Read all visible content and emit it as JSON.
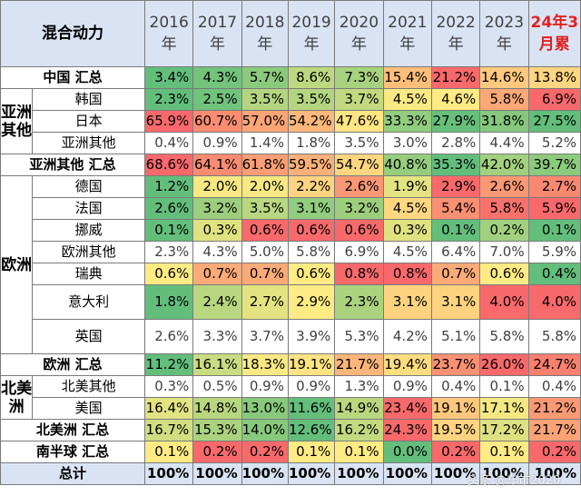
{
  "header": {
    "title": "混合动力",
    "years": [
      {
        "line1": "2016",
        "line2": "年"
      },
      {
        "line1": "2017",
        "line2": "年"
      },
      {
        "line1": "2018",
        "line2": "年"
      },
      {
        "line1": "2019",
        "line2": "年"
      },
      {
        "line1": "2020",
        "line2": "年"
      },
      {
        "line1": "2021",
        "line2": "年"
      },
      {
        "line1": "2022",
        "line2": "年"
      },
      {
        "line1": "2023",
        "line2": "年"
      },
      {
        "line1": "24年3",
        "line2": "月累"
      }
    ]
  },
  "groups": {
    "asia_other": {
      "line1": "亚洲",
      "line2": "其他"
    },
    "europe": "欧洲",
    "north_america": {
      "line1": "北美",
      "line2": "洲"
    }
  },
  "rows": {
    "china_total": {
      "label": "中国 汇总",
      "values": [
        "3.4%",
        "4.3%",
        "5.7%",
        "8.6%",
        "7.3%",
        "15.4%",
        "21.2%",
        "14.6%",
        "13.8%"
      ]
    },
    "korea": {
      "label": "韩国",
      "values": [
        "2.3%",
        "2.5%",
        "3.5%",
        "3.5%",
        "3.7%",
        "4.5%",
        "4.6%",
        "5.8%",
        "6.9%"
      ]
    },
    "japan": {
      "label": "日本",
      "values": [
        "65.9%",
        "60.7%",
        "57.0%",
        "54.2%",
        "47.6%",
        "33.3%",
        "27.9%",
        "31.8%",
        "27.5%"
      ]
    },
    "asia_misc": {
      "label": "亚洲其他",
      "values": [
        "0.4%",
        "0.9%",
        "1.4%",
        "1.8%",
        "3.5%",
        "3.0%",
        "2.8%",
        "4.4%",
        "5.2%"
      ]
    },
    "asia_total": {
      "label": "亚洲其他 汇总",
      "values": [
        "68.6%",
        "64.1%",
        "61.8%",
        "59.5%",
        "54.7%",
        "40.8%",
        "35.3%",
        "42.0%",
        "39.7%"
      ]
    },
    "germany": {
      "label": "德国",
      "values": [
        "1.2%",
        "2.0%",
        "2.0%",
        "2.2%",
        "2.6%",
        "1.9%",
        "2.9%",
        "2.6%",
        "2.7%"
      ]
    },
    "france": {
      "label": "法国",
      "values": [
        "2.6%",
        "3.2%",
        "3.5%",
        "3.1%",
        "3.2%",
        "4.5%",
        "5.4%",
        "5.8%",
        "5.9%"
      ]
    },
    "norway": {
      "label": "挪威",
      "values": [
        "0.1%",
        "0.3%",
        "0.6%",
        "0.6%",
        "0.6%",
        "0.3%",
        "0.1%",
        "0.2%",
        "0.1%"
      ]
    },
    "europe_misc": {
      "label": "欧洲其他",
      "values": [
        "2.3%",
        "4.3%",
        "5.0%",
        "5.8%",
        "6.9%",
        "4.5%",
        "6.4%",
        "7.0%",
        "5.9%"
      ]
    },
    "sweden": {
      "label": "瑞典",
      "values": [
        "0.6%",
        "0.7%",
        "0.7%",
        "0.6%",
        "0.8%",
        "0.8%",
        "0.7%",
        "0.6%",
        "0.4%"
      ]
    },
    "italy": {
      "label": "意大利",
      "values": [
        "1.8%",
        "2.4%",
        "2.7%",
        "2.9%",
        "2.3%",
        "3.1%",
        "3.1%",
        "4.0%",
        "4.0%"
      ]
    },
    "uk": {
      "label": "英国",
      "values": [
        "2.6%",
        "3.3%",
        "3.7%",
        "3.9%",
        "5.3%",
        "4.2%",
        "5.1%",
        "5.8%",
        "5.8%"
      ]
    },
    "europe_total": {
      "label": "欧洲 汇总",
      "values": [
        "11.2%",
        "16.1%",
        "18.3%",
        "19.1%",
        "21.7%",
        "19.4%",
        "23.7%",
        "26.0%",
        "24.7%"
      ]
    },
    "na_misc": {
      "label": "北美其他",
      "values": [
        "0.3%",
        "0.5%",
        "0.9%",
        "0.9%",
        "1.3%",
        "0.9%",
        "0.4%",
        "0.1%",
        "0.4%"
      ]
    },
    "usa": {
      "label": "美国",
      "values": [
        "16.4%",
        "14.8%",
        "13.0%",
        "11.6%",
        "14.9%",
        "23.4%",
        "19.1%",
        "17.1%",
        "21.2%"
      ]
    },
    "na_total": {
      "label": "北美洲 汇总",
      "values": [
        "16.7%",
        "15.3%",
        "14.0%",
        "12.6%",
        "16.2%",
        "24.3%",
        "19.5%",
        "17.2%",
        "21.7%"
      ]
    },
    "south_total": {
      "label": "南半球 汇总",
      "values": [
        "0.1%",
        "0.2%",
        "0.2%",
        "0.1%",
        "0.1%",
        "0.0%",
        "0.2%",
        "0.1%",
        "0.2%"
      ]
    },
    "grand_total": {
      "label": "总计",
      "values": [
        "100%",
        "100%",
        "100%",
        "100%",
        "100%",
        "100%",
        "100%",
        "100%",
        "100%"
      ]
    }
  },
  "colors": {
    "header_bg": "#d9e3f3",
    "accent_red": "#e02020",
    "scale_green": "#63be7b",
    "scale_yellow": "#ffeb84",
    "scale_red": "#f8696b"
  },
  "watermark": "头条 @车市2020"
}
